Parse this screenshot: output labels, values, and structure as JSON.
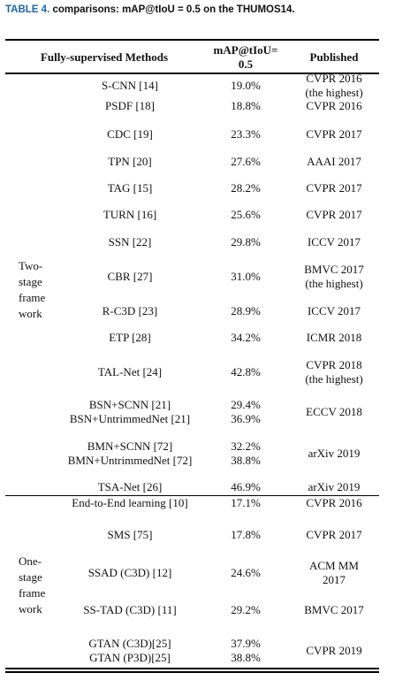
{
  "caption": {
    "label": "TABLE 4.",
    "text": " comparisons: mAP@tIoU = 0.5 on the THUMOS14."
  },
  "table": {
    "headers": {
      "method": "Fully-supervised Methods",
      "map_line1": "mAP@tIoU=",
      "map_line2": "0.5",
      "published": "Published"
    },
    "groups": [
      {
        "lines": [
          "Two-",
          "stage",
          "frame",
          "work"
        ]
      },
      {
        "lines": [
          "One-",
          "stage",
          "frame",
          "work"
        ]
      }
    ],
    "rows": [
      {
        "method": [
          "S-CNN [14]"
        ],
        "map": [
          "19.0%"
        ],
        "published": [
          "CVPR 2016",
          "(the highest)"
        ]
      },
      {
        "method": [
          "PSDF [18]"
        ],
        "map": [
          "18.8%"
        ],
        "published": [
          "CVPR 2016"
        ]
      },
      {
        "method": [
          "CDC [19]"
        ],
        "map": [
          "23.3%"
        ],
        "published": [
          "CVPR 2017"
        ]
      },
      {
        "method": [
          "TPN [20]"
        ],
        "map": [
          "27.6%"
        ],
        "published": [
          "AAAI 2017"
        ]
      },
      {
        "method": [
          "TAG [15]"
        ],
        "map": [
          "28.2%"
        ],
        "published": [
          "CVPR 2017"
        ]
      },
      {
        "method": [
          "TURN [16]"
        ],
        "map": [
          "25.6%"
        ],
        "published": [
          "CVPR 2017"
        ]
      },
      {
        "method": [
          "SSN [22]"
        ],
        "map": [
          "29.8%"
        ],
        "published": [
          "ICCV 2017"
        ]
      },
      {
        "method": [
          "CBR [27]"
        ],
        "map": [
          "31.0%"
        ],
        "published": [
          "BMVC 2017",
          "(the highest)"
        ]
      },
      {
        "method": [
          "R-C3D [23]"
        ],
        "map": [
          "28.9%"
        ],
        "published": [
          "ICCV 2017"
        ]
      },
      {
        "method": [
          "ETP [28]"
        ],
        "map": [
          "34.2%"
        ],
        "published": [
          "ICMR 2018"
        ]
      },
      {
        "method": [
          "TAL-Net [24]"
        ],
        "map": [
          "42.8%"
        ],
        "published": [
          "CVPR 2018",
          "(the highest)"
        ]
      },
      {
        "method": [
          "BSN+SCNN [21]",
          "BSN+UntrimmedNet [21]"
        ],
        "map": [
          "29.4%",
          "36.9%"
        ],
        "published": [
          "ECCV 2018"
        ]
      },
      {
        "method": [
          "BMN+SCNN [72]",
          "BMN+UntrimmedNet [72]"
        ],
        "map": [
          "32.2%",
          "38.8%"
        ],
        "published": [
          "arXiv 2019"
        ]
      },
      {
        "method": [
          "TSA-Net [26]"
        ],
        "map": [
          "46.9%"
        ],
        "published": [
          "arXiv 2019"
        ]
      },
      {
        "method": [
          "End-to-End learning [10]"
        ],
        "map": [
          "17.1%"
        ],
        "published": [
          "CVPR 2016"
        ]
      },
      {
        "method": [
          "SMS [75]"
        ],
        "map": [
          "17.8%"
        ],
        "published": [
          "CVPR 2017"
        ]
      },
      {
        "method": [
          "SSAD (C3D) [12]"
        ],
        "map": [
          "24.6%"
        ],
        "published": [
          "ACM MM",
          "2017"
        ]
      },
      {
        "method": [
          "SS-TAD (C3D) [11]"
        ],
        "map": [
          "29.2%"
        ],
        "published": [
          "BMVC 2017"
        ]
      },
      {
        "method": [
          "GTAN (C3D)[25]",
          "GTAN (P3D)[25]"
        ],
        "map": [
          "37.9%",
          "38.8%"
        ],
        "published": [
          "CVPR 2019"
        ]
      }
    ]
  }
}
